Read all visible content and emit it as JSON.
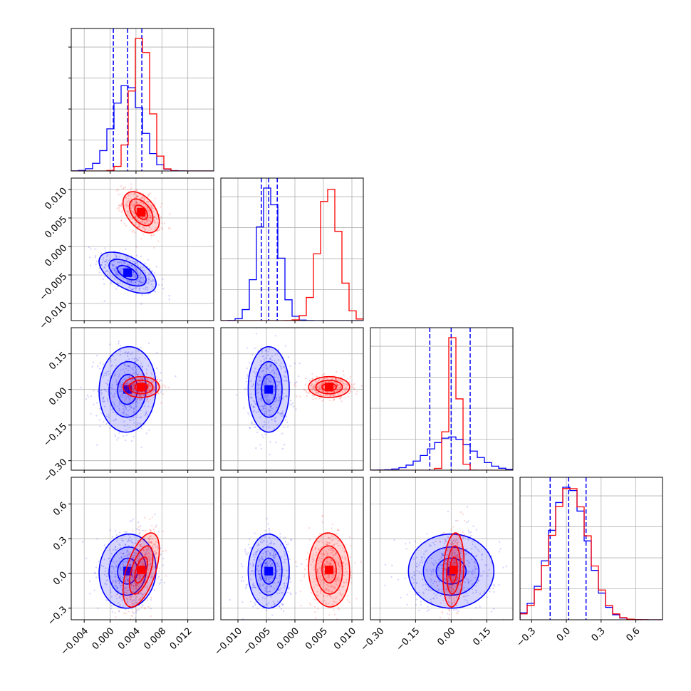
{
  "chart_data": {
    "type": "corner",
    "colors": {
      "blue": "#0000ff",
      "red": "#ff0000",
      "grid": "#b0b0b0"
    },
    "params": [
      {
        "ticks": [
          -0.004,
          0.0,
          0.004,
          0.008,
          0.012
        ],
        "labels": [
          "−0.004",
          "0.000",
          "0.004",
          "0.008",
          "0.012"
        ],
        "range": [
          -0.006,
          0.016
        ]
      },
      {
        "ticks": [
          -0.01,
          -0.005,
          0.0,
          0.005,
          0.01
        ],
        "labels": [
          "−0.010",
          "−0.005",
          "0.000",
          "0.005",
          "0.010"
        ],
        "range": [
          -0.013,
          0.012
        ]
      },
      {
        "ticks": [
          -0.3,
          -0.15,
          0.0,
          0.15
        ],
        "labels": [
          "−0.30",
          "−0.15",
          "0.00",
          "0.15"
        ],
        "range": [
          -0.34,
          0.26
        ]
      },
      {
        "ticks": [
          -0.3,
          0.0,
          0.3,
          0.6
        ],
        "labels": [
          "−0.3",
          "0.0",
          "0.3",
          "0.6"
        ],
        "range": [
          -0.4,
          0.83
        ]
      }
    ],
    "diag_ylabels": [],
    "series": [
      {
        "color": "blue",
        "mean": [
          0.0027,
          -0.0046,
          0.0,
          0.02
        ],
        "std": [
          0.0022,
          0.0018,
          0.09,
          0.16
        ],
        "corr": [
          [
            1,
            -0.55,
            0.05,
            0.05
          ],
          [
            -0.55,
            1,
            0,
            0
          ],
          [
            0.05,
            0,
            1,
            0
          ],
          [
            0.05,
            0,
            0,
            1
          ]
        ],
        "quantiles": [
          [
            0.0005,
            0.0027,
            0.0049
          ],
          [
            -0.0059,
            -0.0046,
            -0.0031
          ],
          [
            -0.09,
            0.0,
            0.08
          ],
          [
            -0.14,
            0.02,
            0.17
          ]
        ]
      },
      {
        "color": "red",
        "mean": [
          0.0048,
          0.006,
          0.01,
          0.03
        ],
        "std": [
          0.0014,
          0.0018,
          0.022,
          0.16
        ],
        "corr": [
          [
            1,
            -0.45,
            0.0,
            0.55
          ],
          [
            -0.45,
            1,
            0,
            -0.05
          ],
          [
            0.0,
            0,
            1,
            0.2
          ],
          [
            0.55,
            -0.05,
            0.2,
            1
          ]
        ],
        "quantiles": []
      }
    ]
  }
}
